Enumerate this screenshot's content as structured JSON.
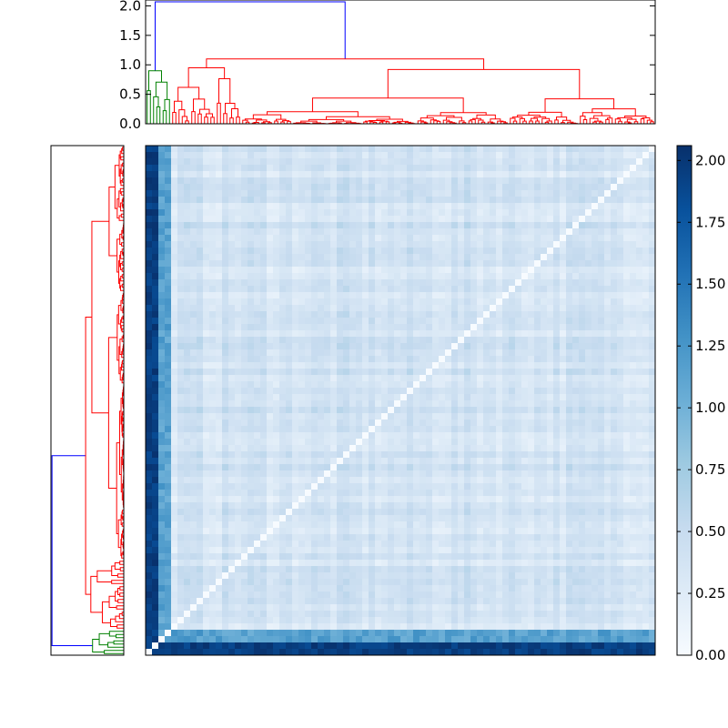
{
  "chart_data": [
    {
      "type": "dendrogram",
      "orientation": "top",
      "ylim": [
        0,
        2.1
      ],
      "yticks": [
        "0.0",
        "0.5",
        "1.0",
        "1.5",
        "2.0"
      ],
      "ytick_values": [
        0,
        0.5,
        1.0,
        1.5,
        2.0
      ],
      "link_colors": {
        "root": "#0000ff",
        "small_cluster": "#008000",
        "main_cluster": "#ff0000"
      },
      "merges": [
        {
          "name": "root",
          "height": 2.07,
          "color": "blue"
        },
        {
          "name": "small-cluster",
          "height": 0.9,
          "color": "green"
        },
        {
          "name": "main-cluster",
          "height": 1.1,
          "color": "red"
        },
        {
          "name": "main-left",
          "height": 0.95,
          "color": "red"
        },
        {
          "name": "main-right",
          "height": 0.92,
          "color": "red"
        }
      ]
    },
    {
      "type": "dendrogram",
      "orientation": "left",
      "link_colors": {
        "root": "#0000ff",
        "small_cluster": "#008000",
        "main_cluster": "#ff0000"
      }
    },
    {
      "type": "heatmap",
      "colormap": "Blues",
      "vmin": 0.0,
      "vmax": 2.06,
      "n": 160,
      "outlier_rows_cols": "last rows / first cols near 2.0, diagonal 0",
      "typical_offdiagonal": [
        0.15,
        0.55
      ],
      "colorbar_ticks": [
        "0.00",
        "0.25",
        "0.50",
        "0.75",
        "1.00",
        "1.25",
        "1.50",
        "1.75",
        "2.00"
      ],
      "colorbar_tick_values": [
        0,
        0.25,
        0.5,
        0.75,
        1.0,
        1.25,
        1.5,
        1.75,
        2.0
      ]
    }
  ]
}
